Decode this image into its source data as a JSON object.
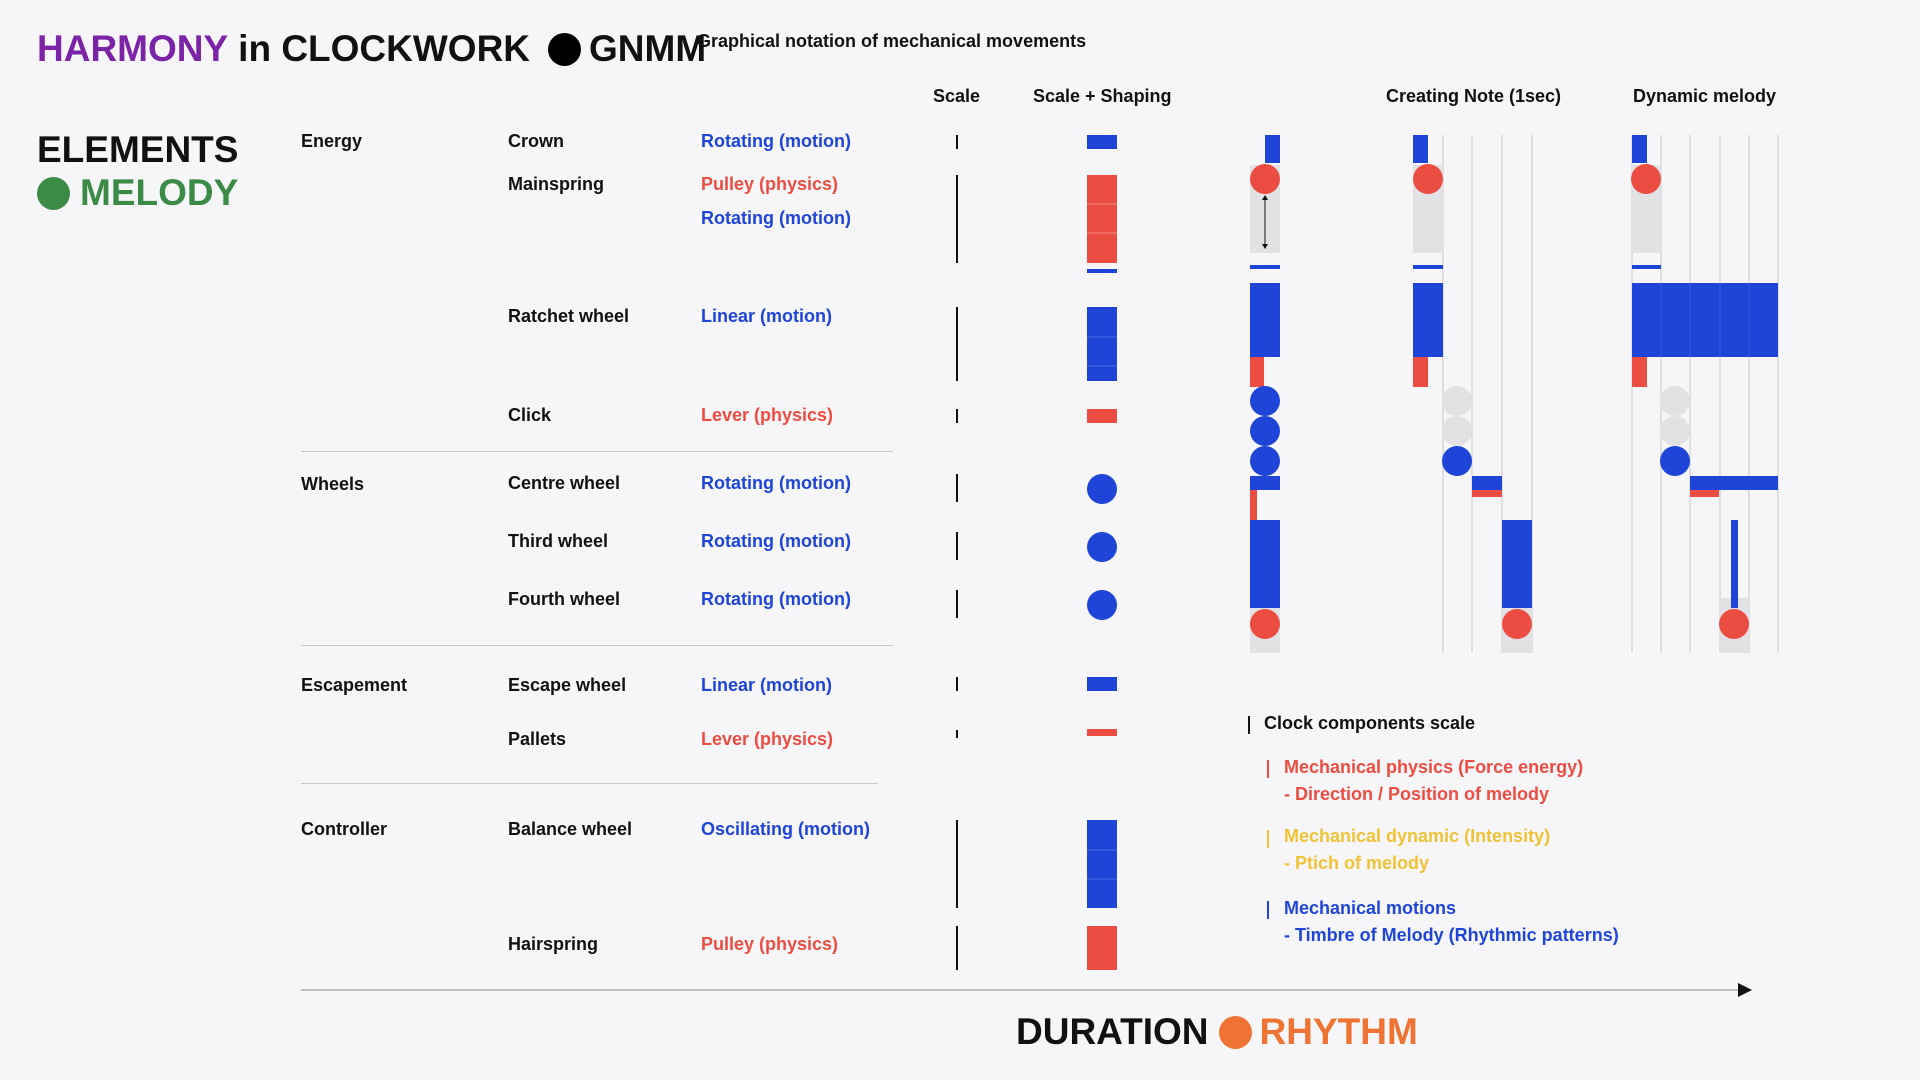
{
  "header": {
    "harmony": "HARMONY",
    "in_clockwork": "in CLOCKWORK",
    "gnmm": "GNMM",
    "subtitle": "Graphical notation of mechanical movements"
  },
  "side": {
    "elements": "ELEMENTS",
    "melody": "MELODY"
  },
  "columns": {
    "scale": "Scale",
    "scale_shaping": "Scale + Shaping",
    "creating_note": "Creating Note (1sec)",
    "dynamic_melody": "Dynamic melody"
  },
  "groups": [
    "Energy",
    "Wheels",
    "Escapement",
    "Controller"
  ],
  "components": [
    {
      "name": "Crown",
      "type": "Rotating (motion)",
      "kind": "motion"
    },
    {
      "name": "Mainspring",
      "type": "Pulley (physics)",
      "kind": "physics",
      "type2": "Rotating (motion)"
    },
    {
      "name": "Ratchet wheel",
      "type": "Linear (motion)",
      "kind": "motion"
    },
    {
      "name": "Click",
      "type": "Lever (physics)",
      "kind": "physics"
    },
    {
      "name": "Centre wheel",
      "type": "Rotating (motion)",
      "kind": "motion"
    },
    {
      "name": "Third wheel",
      "type": "Rotating (motion)",
      "kind": "motion"
    },
    {
      "name": "Fourth wheel",
      "type": "Rotating (motion)",
      "kind": "motion"
    },
    {
      "name": "Escape wheel",
      "type": "Linear (motion)",
      "kind": "motion"
    },
    {
      "name": "Pallets",
      "type": "Lever (physics)",
      "kind": "physics"
    },
    {
      "name": "Balance wheel",
      "type": "Oscillating (motion)",
      "kind": "motion"
    },
    {
      "name": "Hairspring",
      "type": "Pulley (physics)",
      "kind": "physics"
    }
  ],
  "legend": {
    "title": "Clock components scale",
    "physics_1": "Mechanical physics (Force energy)",
    "physics_2": "- Direction / Position of melody",
    "dynamic_1": "Mechanical dynamic (Intensity)",
    "dynamic_2": "- Ptich of melody",
    "motion_1": "Mechanical motions",
    "motion_2": "- Timbre of Melody (Rhythmic patterns)"
  },
  "footer": {
    "duration": "DURATION",
    "rhythm": "RHYTHM"
  },
  "colors": {
    "motion": "#1e45d8",
    "physics": "#eb4d42",
    "dynamic": "#f0c236",
    "harmony": "#7b24a8",
    "melody": "#3b8a46",
    "rhythm": "#ef7434"
  }
}
